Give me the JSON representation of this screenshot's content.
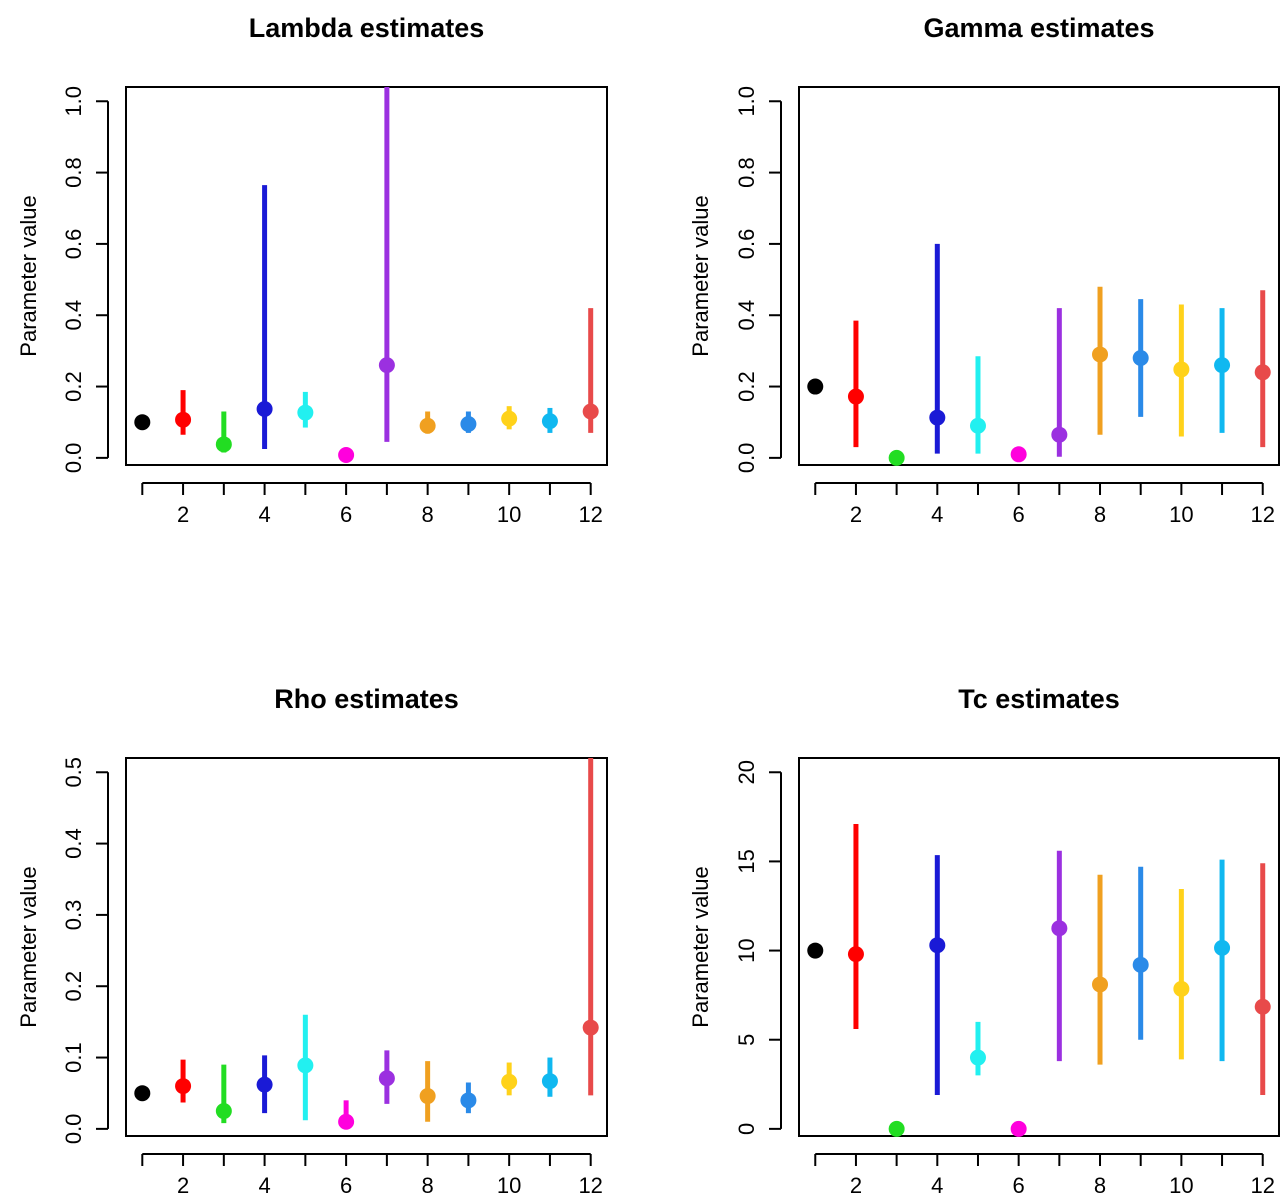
{
  "chart_data": [
    {
      "type": "scatter",
      "title": "Lambda estimates",
      "ylabel": "Parameter value",
      "xlabel": "",
      "xlim": [
        0.6,
        12.4
      ],
      "ylim": [
        -0.02,
        1.04
      ],
      "xticks": [
        2,
        4,
        6,
        8,
        10,
        12
      ],
      "yticks": [
        0.0,
        0.2,
        0.4,
        0.6,
        0.8,
        1.0
      ],
      "ytick_labels": [
        "0.0",
        "0.2",
        "0.4",
        "0.6",
        "0.8",
        "1.0"
      ],
      "points": [
        {
          "x": 1,
          "y": 0.1,
          "lo": null,
          "hi": null,
          "color": "#000000"
        },
        {
          "x": 2,
          "y": 0.107,
          "lo": 0.065,
          "hi": 0.19,
          "color": "#ff0000"
        },
        {
          "x": 3,
          "y": 0.038,
          "lo": 0.015,
          "hi": 0.13,
          "color": "#22dd22"
        },
        {
          "x": 4,
          "y": 0.137,
          "lo": 0.025,
          "hi": 0.765,
          "color": "#1a1ad6"
        },
        {
          "x": 5,
          "y": 0.127,
          "lo": 0.085,
          "hi": 0.185,
          "color": "#22f0f0"
        },
        {
          "x": 6,
          "y": 0.008,
          "lo": null,
          "hi": null,
          "color": "#ff00dd"
        },
        {
          "x": 7,
          "y": 0.26,
          "lo": 0.045,
          "hi": 1.04,
          "color": "#9b30e0"
        },
        {
          "x": 8,
          "y": 0.09,
          "lo": 0.068,
          "hi": 0.13,
          "color": "#f0a020"
        },
        {
          "x": 9,
          "y": 0.095,
          "lo": 0.07,
          "hi": 0.13,
          "color": "#2a8ae8"
        },
        {
          "x": 10,
          "y": 0.11,
          "lo": 0.08,
          "hi": 0.145,
          "color": "#ffd21a"
        },
        {
          "x": 11,
          "y": 0.103,
          "lo": 0.07,
          "hi": 0.14,
          "color": "#10b8f0"
        },
        {
          "x": 12,
          "y": 0.13,
          "lo": 0.07,
          "hi": 0.42,
          "color": "#e84a4a"
        }
      ]
    },
    {
      "type": "scatter",
      "title": "Gamma estimates",
      "ylabel": "Parameter value",
      "xlabel": "",
      "xlim": [
        0.6,
        12.4
      ],
      "ylim": [
        -0.02,
        1.04
      ],
      "xticks": [
        2,
        4,
        6,
        8,
        10,
        12
      ],
      "yticks": [
        0.0,
        0.2,
        0.4,
        0.6,
        0.8,
        1.0
      ],
      "ytick_labels": [
        "0.0",
        "0.2",
        "0.4",
        "0.6",
        "0.8",
        "1.0"
      ],
      "points": [
        {
          "x": 1,
          "y": 0.2,
          "lo": null,
          "hi": null,
          "color": "#000000"
        },
        {
          "x": 2,
          "y": 0.172,
          "lo": 0.03,
          "hi": 0.385,
          "color": "#ff0000"
        },
        {
          "x": 3,
          "y": 0.0,
          "lo": null,
          "hi": null,
          "color": "#22dd22"
        },
        {
          "x": 4,
          "y": 0.113,
          "lo": 0.012,
          "hi": 0.6,
          "color": "#1a1ad6"
        },
        {
          "x": 5,
          "y": 0.09,
          "lo": 0.012,
          "hi": 0.285,
          "color": "#22f0f0"
        },
        {
          "x": 6,
          "y": 0.01,
          "lo": null,
          "hi": null,
          "color": "#ff00dd"
        },
        {
          "x": 7,
          "y": 0.065,
          "lo": 0.003,
          "hi": 0.42,
          "color": "#9b30e0"
        },
        {
          "x": 8,
          "y": 0.29,
          "lo": 0.065,
          "hi": 0.48,
          "color": "#f0a020"
        },
        {
          "x": 9,
          "y": 0.28,
          "lo": 0.115,
          "hi": 0.445,
          "color": "#2a8ae8"
        },
        {
          "x": 10,
          "y": 0.248,
          "lo": 0.06,
          "hi": 0.43,
          "color": "#ffd21a"
        },
        {
          "x": 11,
          "y": 0.26,
          "lo": 0.07,
          "hi": 0.42,
          "color": "#10b8f0"
        },
        {
          "x": 12,
          "y": 0.24,
          "lo": 0.03,
          "hi": 0.47,
          "color": "#e84a4a"
        }
      ]
    },
    {
      "type": "scatter",
      "title": "Rho estimates",
      "ylabel": "Parameter value",
      "xlabel": "",
      "xlim": [
        0.6,
        12.4
      ],
      "ylim": [
        -0.01,
        0.52
      ],
      "xticks": [
        2,
        4,
        6,
        8,
        10,
        12
      ],
      "yticks": [
        0.0,
        0.1,
        0.2,
        0.3,
        0.4,
        0.5
      ],
      "ytick_labels": [
        "0.0",
        "0.1",
        "0.2",
        "0.3",
        "0.4",
        "0.5"
      ],
      "points": [
        {
          "x": 1,
          "y": 0.05,
          "lo": null,
          "hi": null,
          "color": "#000000"
        },
        {
          "x": 2,
          "y": 0.06,
          "lo": 0.037,
          "hi": 0.097,
          "color": "#ff0000"
        },
        {
          "x": 3,
          "y": 0.025,
          "lo": 0.008,
          "hi": 0.09,
          "color": "#22dd22"
        },
        {
          "x": 4,
          "y": 0.062,
          "lo": 0.022,
          "hi": 0.103,
          "color": "#1a1ad6"
        },
        {
          "x": 5,
          "y": 0.089,
          "lo": 0.012,
          "hi": 0.16,
          "color": "#22f0f0"
        },
        {
          "x": 6,
          "y": 0.01,
          "lo": 0.003,
          "hi": 0.04,
          "color": "#ff00dd"
        },
        {
          "x": 7,
          "y": 0.071,
          "lo": 0.035,
          "hi": 0.11,
          "color": "#9b30e0"
        },
        {
          "x": 8,
          "y": 0.046,
          "lo": 0.01,
          "hi": 0.095,
          "color": "#f0a020"
        },
        {
          "x": 9,
          "y": 0.04,
          "lo": 0.022,
          "hi": 0.065,
          "color": "#2a8ae8"
        },
        {
          "x": 10,
          "y": 0.066,
          "lo": 0.047,
          "hi": 0.093,
          "color": "#ffd21a"
        },
        {
          "x": 11,
          "y": 0.067,
          "lo": 0.045,
          "hi": 0.1,
          "color": "#10b8f0"
        },
        {
          "x": 12,
          "y": 0.142,
          "lo": 0.047,
          "hi": 0.52,
          "color": "#e84a4a"
        }
      ]
    },
    {
      "type": "scatter",
      "title": "Tc estimates",
      "ylabel": "Parameter value",
      "xlabel": "",
      "xlim": [
        0.6,
        12.4
      ],
      "ylim": [
        -0.4,
        20.8
      ],
      "xticks": [
        2,
        4,
        6,
        8,
        10,
        12
      ],
      "yticks": [
        0,
        5,
        10,
        15,
        20
      ],
      "ytick_labels": [
        "0",
        "5",
        "10",
        "15",
        "20"
      ],
      "points": [
        {
          "x": 1,
          "y": 10.0,
          "lo": null,
          "hi": null,
          "color": "#000000"
        },
        {
          "x": 2,
          "y": 9.8,
          "lo": 5.6,
          "hi": 17.1,
          "color": "#ff0000"
        },
        {
          "x": 3,
          "y": 0.0,
          "lo": null,
          "hi": null,
          "color": "#22dd22"
        },
        {
          "x": 4,
          "y": 10.3,
          "lo": 1.9,
          "hi": 15.35,
          "color": "#1a1ad6"
        },
        {
          "x": 5,
          "y": 4.0,
          "lo": 3.0,
          "hi": 6.0,
          "color": "#22f0f0"
        },
        {
          "x": 6,
          "y": 0.0,
          "lo": null,
          "hi": null,
          "color": "#ff00dd"
        },
        {
          "x": 7,
          "y": 11.25,
          "lo": 3.8,
          "hi": 15.6,
          "color": "#9b30e0"
        },
        {
          "x": 8,
          "y": 8.1,
          "lo": 3.6,
          "hi": 14.25,
          "color": "#f0a020"
        },
        {
          "x": 9,
          "y": 9.2,
          "lo": 5.0,
          "hi": 14.7,
          "color": "#2a8ae8"
        },
        {
          "x": 10,
          "y": 7.85,
          "lo": 3.9,
          "hi": 13.45,
          "color": "#ffd21a"
        },
        {
          "x": 11,
          "y": 10.15,
          "lo": 3.8,
          "hi": 15.1,
          "color": "#10b8f0"
        },
        {
          "x": 12,
          "y": 6.85,
          "lo": 1.9,
          "hi": 14.9,
          "color": "#e84a4a"
        }
      ]
    }
  ]
}
